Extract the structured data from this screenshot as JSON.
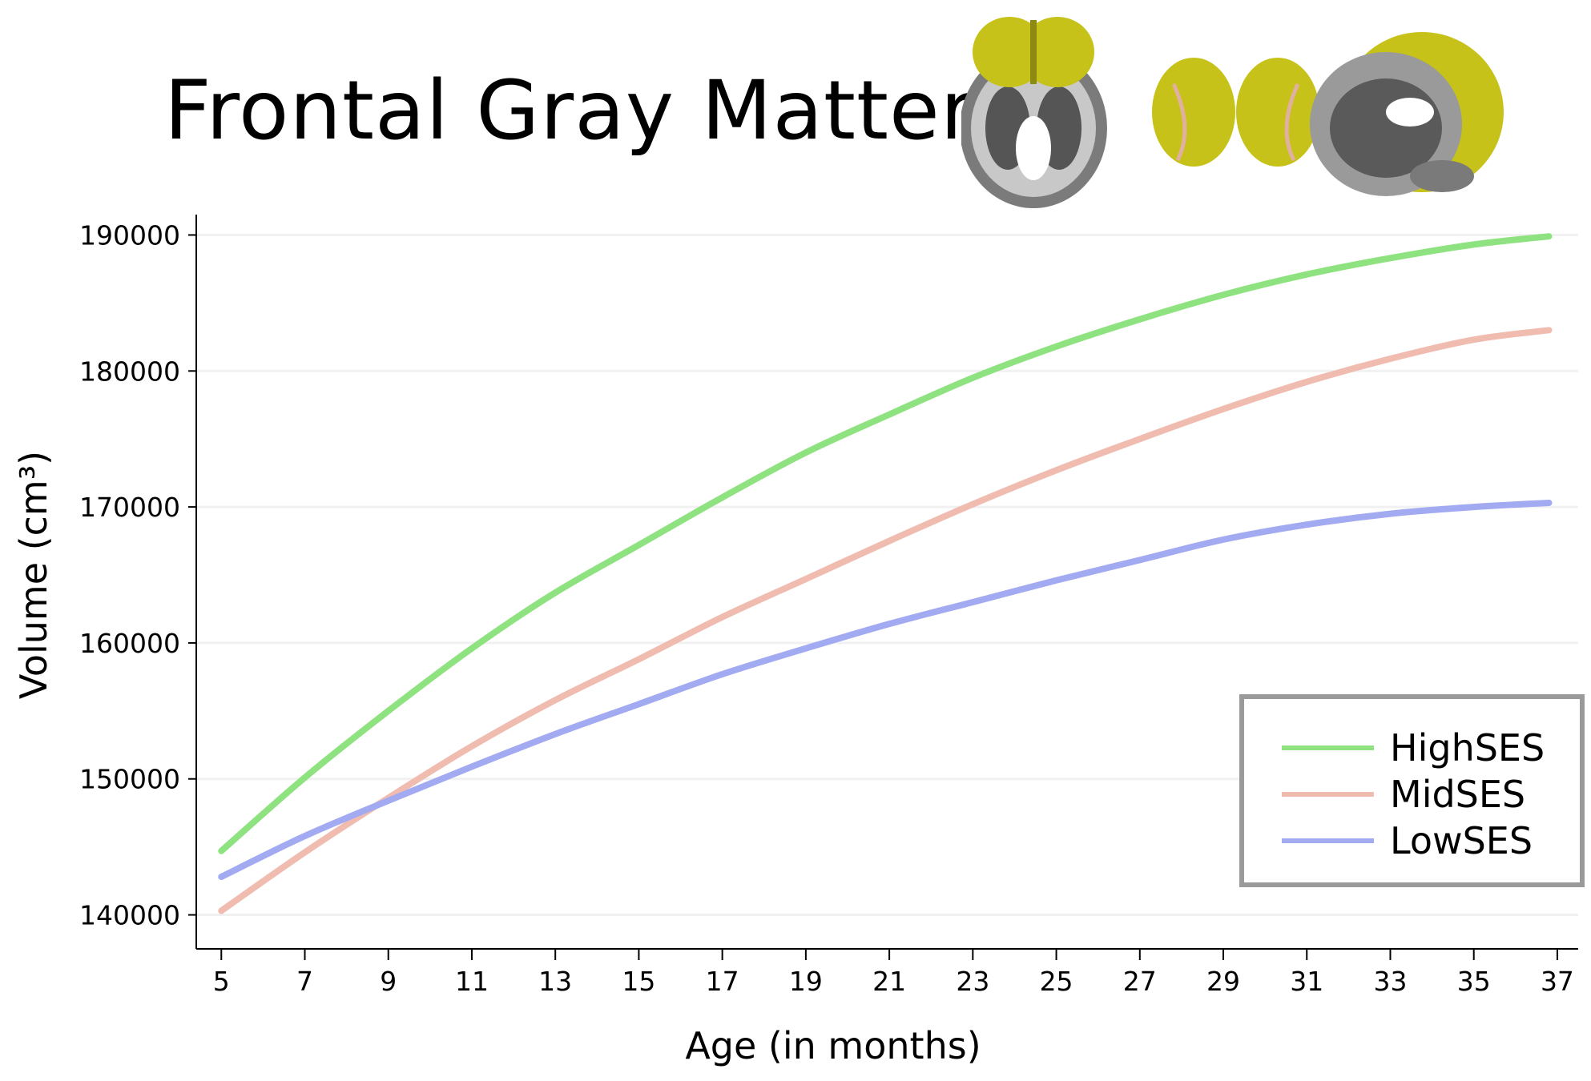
{
  "chart_data": {
    "type": "line",
    "title": "Frontal Gray Matter",
    "xlabel": "Age (in months)",
    "ylabel": "Volume (cm³)",
    "xlim": [
      4.4,
      37.5
    ],
    "ylim": [
      137500,
      191500
    ],
    "x_ticks": [
      5,
      7,
      9,
      11,
      13,
      15,
      17,
      19,
      21,
      23,
      25,
      27,
      29,
      31,
      33,
      35,
      37
    ],
    "y_ticks": [
      140000,
      150000,
      160000,
      170000,
      180000,
      190000
    ],
    "grid": true,
    "legend_position": "bottom-right",
    "x": [
      5,
      7,
      9,
      11,
      13,
      15,
      17,
      19,
      21,
      23,
      25,
      27,
      29,
      31,
      33,
      35,
      36.8
    ],
    "series": [
      {
        "name": "HighSES",
        "color": "#8ee27f",
        "values": [
          144700,
          150100,
          155000,
          159600,
          163700,
          167200,
          170700,
          174000,
          176800,
          179500,
          181800,
          183800,
          185600,
          187100,
          188300,
          189300,
          189900
        ]
      },
      {
        "name": "MidSES",
        "color": "#f0bcb0",
        "values": [
          140300,
          144600,
          148600,
          152400,
          155800,
          158800,
          161900,
          164700,
          167500,
          170200,
          172700,
          175000,
          177200,
          179200,
          180900,
          182300,
          183000
        ]
      },
      {
        "name": "LowSES",
        "color": "#a2aaf2",
        "values": [
          142800,
          145800,
          148400,
          150900,
          153300,
          155500,
          157700,
          159600,
          161400,
          163000,
          164600,
          166100,
          167600,
          168700,
          169500,
          170000,
          170300
        ]
      }
    ]
  },
  "brain_images": {
    "highlight_color": "#c6c21a",
    "views": [
      "axial-view",
      "coronal-view",
      "sagittal-view"
    ]
  }
}
